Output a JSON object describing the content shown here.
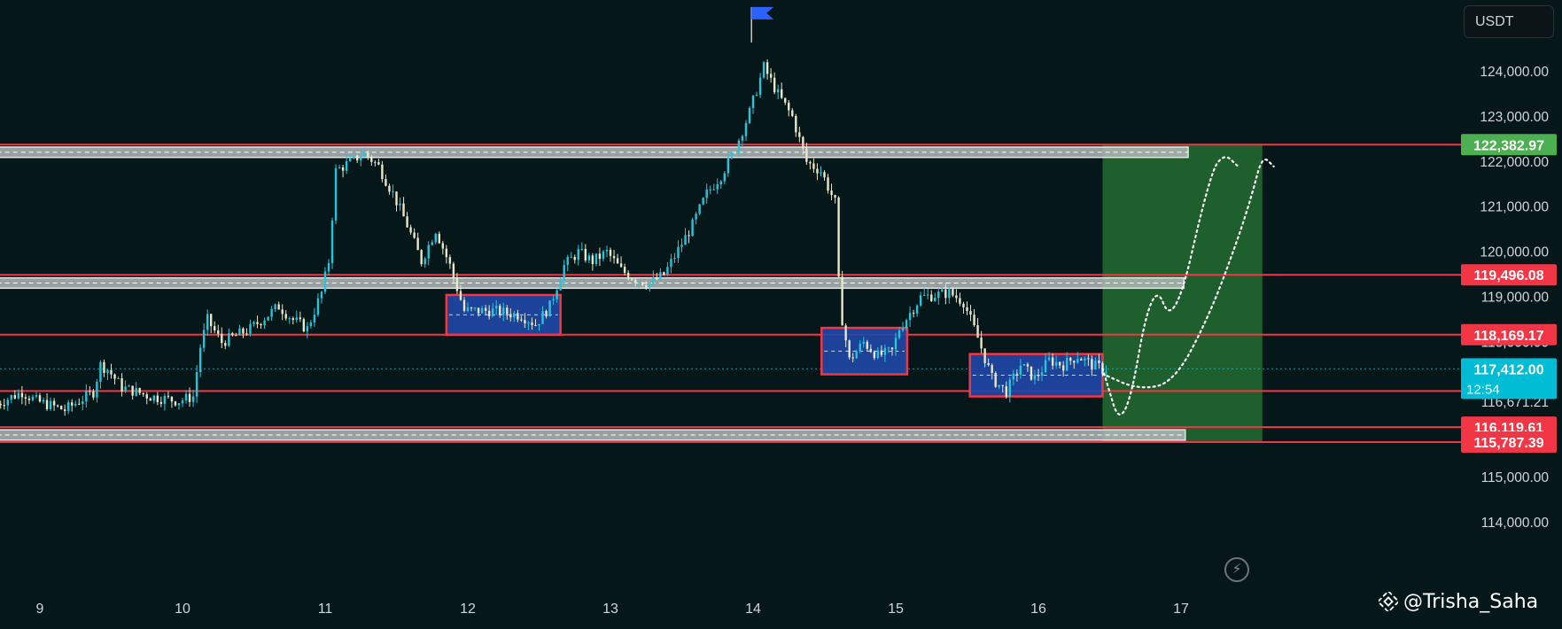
{
  "toolbar": {
    "currency_label": "USDT"
  },
  "watermark": {
    "text": "@Trisha_Saha",
    "logo_icon": "binance-diamond-icon"
  },
  "bolt_icon": "lightning-icon",
  "colors": {
    "background": "#06171a",
    "level_line": "#f23645",
    "zone_fill": "#1f47a8",
    "target_fill": "#2a7a35",
    "up_candle": "#26c6da",
    "down_candle": "#e9e6c9",
    "label_green": "#4caf50",
    "label_cyan": "#00bcd4"
  },
  "chart_data": {
    "type": "candlestick",
    "pair_quote": "USDT",
    "x_axis": {
      "unit": "day",
      "range": [
        8.7,
        17.5
      ],
      "ticks": [
        {
          "value": 9,
          "label": "9"
        },
        {
          "value": 10,
          "label": "10"
        },
        {
          "value": 11,
          "label": "11"
        },
        {
          "value": 12,
          "label": "12"
        },
        {
          "value": 13,
          "label": "13"
        },
        {
          "value": 14,
          "label": "14"
        },
        {
          "value": 15,
          "label": "15"
        },
        {
          "value": 16,
          "label": "16"
        },
        {
          "value": 17,
          "label": "17"
        }
      ]
    },
    "y_axis": {
      "range": [
        113600,
        125600
      ],
      "ticks": [
        {
          "value": 124000,
          "label": "124,000.00"
        },
        {
          "value": 123000,
          "label": "123,000.00"
        },
        {
          "value": 122000,
          "label": "122,000.00"
        },
        {
          "value": 121000,
          "label": "121,000.00"
        },
        {
          "value": 120000,
          "label": "120,000.00"
        },
        {
          "value": 119000,
          "label": "119,000.00"
        },
        {
          "value": 118000,
          "label": "118,000.00"
        },
        {
          "value": 115000,
          "label": "115,000.00"
        },
        {
          "value": 114000,
          "label": "114,000.00"
        }
      ]
    },
    "price_path": [
      [
        8.7,
        116600
      ],
      [
        8.9,
        116900
      ],
      [
        9.0,
        116700
      ],
      [
        9.2,
        116500
      ],
      [
        9.4,
        116900
      ],
      [
        9.45,
        117500
      ],
      [
        9.5,
        117400
      ],
      [
        9.6,
        117000
      ],
      [
        9.8,
        116800
      ],
      [
        9.9,
        116750
      ],
      [
        10.0,
        116700
      ],
      [
        10.1,
        116800
      ],
      [
        10.15,
        117900
      ],
      [
        10.2,
        118500
      ],
      [
        10.3,
        118000
      ],
      [
        10.5,
        118300
      ],
      [
        10.7,
        118800
      ],
      [
        10.8,
        118500
      ],
      [
        10.9,
        118300
      ],
      [
        11.0,
        119100
      ],
      [
        11.05,
        119800
      ],
      [
        11.1,
        121800
      ],
      [
        11.2,
        122000
      ],
      [
        11.3,
        122200
      ],
      [
        11.4,
        121900
      ],
      [
        11.5,
        121300
      ],
      [
        11.6,
        120600
      ],
      [
        11.7,
        119800
      ],
      [
        11.8,
        120500
      ],
      [
        11.9,
        119700
      ],
      [
        12.0,
        118700
      ],
      [
        12.2,
        118700
      ],
      [
        12.4,
        118600
      ],
      [
        12.5,
        118400
      ],
      [
        12.6,
        118800
      ],
      [
        12.7,
        119700
      ],
      [
        12.8,
        120000
      ],
      [
        12.9,
        119800
      ],
      [
        13.0,
        120000
      ],
      [
        13.1,
        119600
      ],
      [
        13.2,
        119400
      ],
      [
        13.3,
        119300
      ],
      [
        13.4,
        119500
      ],
      [
        13.6,
        120600
      ],
      [
        13.7,
        121300
      ],
      [
        13.8,
        121700
      ],
      [
        13.9,
        122300
      ],
      [
        14.0,
        123100
      ],
      [
        14.05,
        123600
      ],
      [
        14.1,
        124100
      ],
      [
        14.2,
        123500
      ],
      [
        14.3,
        123000
      ],
      [
        14.4,
        122000
      ],
      [
        14.5,
        121800
      ],
      [
        14.6,
        121100
      ],
      [
        14.62,
        119500
      ],
      [
        14.65,
        118500
      ],
      [
        14.7,
        117600
      ],
      [
        14.8,
        118000
      ],
      [
        14.9,
        117700
      ],
      [
        15.0,
        117800
      ],
      [
        15.05,
        118300
      ],
      [
        15.2,
        119000
      ],
      [
        15.4,
        119100
      ],
      [
        15.5,
        118900
      ],
      [
        15.6,
        118100
      ],
      [
        15.7,
        117200
      ],
      [
        15.8,
        116900
      ],
      [
        15.9,
        117500
      ],
      [
        16.0,
        117200
      ],
      [
        16.1,
        117600
      ],
      [
        16.2,
        117500
      ],
      [
        16.3,
        117700
      ],
      [
        16.4,
        117500
      ],
      [
        16.48,
        117412
      ]
    ],
    "levels": [
      {
        "price": 122382.97,
        "label": "122,382.97",
        "badge": "green"
      },
      {
        "price": 119496.08,
        "label": "119,496.08",
        "badge": "red"
      },
      {
        "price": 118169.17,
        "label": "118,169.17",
        "badge": "red"
      },
      {
        "price": 116119.61,
        "label": "116,119.61",
        "badge": "red"
      },
      {
        "price": 115787.39,
        "label": "115,787.39",
        "badge": "red"
      }
    ],
    "unlabeled_levels": [
      116920
    ],
    "current_price": {
      "value": 117412.0,
      "label": "117,412.00",
      "countdown": "12:54"
    },
    "hidden_axis_labels": [
      "116,671.21",
      "118,000.00"
    ],
    "gray_zones": [
      {
        "x": [
          8.7,
          17.05
        ],
        "y": [
          122100,
          122330
        ]
      },
      {
        "x": [
          8.7,
          17.02
        ],
        "y": [
          119200,
          119430
        ]
      },
      {
        "x": [
          8.7,
          17.03
        ],
        "y": [
          115830,
          116060
        ]
      }
    ],
    "consolidation_boxes": [
      {
        "x": [
          11.85,
          12.65
        ],
        "y": [
          118169,
          119050
        ]
      },
      {
        "x": [
          14.48,
          15.08
        ],
        "y": [
          117290,
          118320
        ]
      },
      {
        "x": [
          15.52,
          16.45
        ],
        "y": [
          116800,
          117740
        ]
      }
    ],
    "target_zone": {
      "x": [
        16.45,
        17.57
      ],
      "y": [
        115787.39,
        122382.97
      ]
    },
    "projection_paths": [
      [
        [
          16.45,
          117420
        ],
        [
          16.6,
          115850
        ],
        [
          16.8,
          119500
        ],
        [
          16.95,
          118250
        ],
        [
          17.2,
          121700
        ],
        [
          17.3,
          122200
        ],
        [
          17.4,
          121900
        ]
      ],
      [
        [
          16.45,
          117300
        ],
        [
          16.7,
          116950
        ],
        [
          16.95,
          117100
        ],
        [
          17.2,
          118600
        ],
        [
          17.4,
          120300
        ],
        [
          17.5,
          121300
        ],
        [
          17.57,
          122150
        ],
        [
          17.65,
          121900
        ]
      ]
    ],
    "flag_marker": {
      "x": 14.02,
      "y": 125200
    }
  }
}
